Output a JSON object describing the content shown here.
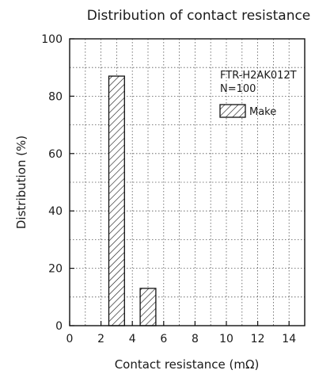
{
  "chart_data": {
    "type": "bar",
    "title": "Distribution of contact resistance",
    "xlabel": "Contact resistance (mΩ)",
    "ylabel": "Distribution (%)",
    "xlim": [
      0,
      15
    ],
    "ylim": [
      0,
      100
    ],
    "xticks": [
      "0",
      "2",
      "4",
      "6",
      "8",
      "10",
      "12",
      "14"
    ],
    "yticks": [
      "0",
      "20",
      "40",
      "60",
      "80",
      "100"
    ],
    "grid": true,
    "bar_width": 1,
    "bars": [
      {
        "x_start": 2.5,
        "x_end": 3.5,
        "value": 87
      },
      {
        "x_start": 4.5,
        "x_end": 5.5,
        "value": 13
      }
    ],
    "annotations": [
      "FTR-H2AK012T",
      "N=100"
    ],
    "legend": {
      "label": "Make",
      "pattern": "diagonal-hatch",
      "placement": "top-right"
    }
  }
}
